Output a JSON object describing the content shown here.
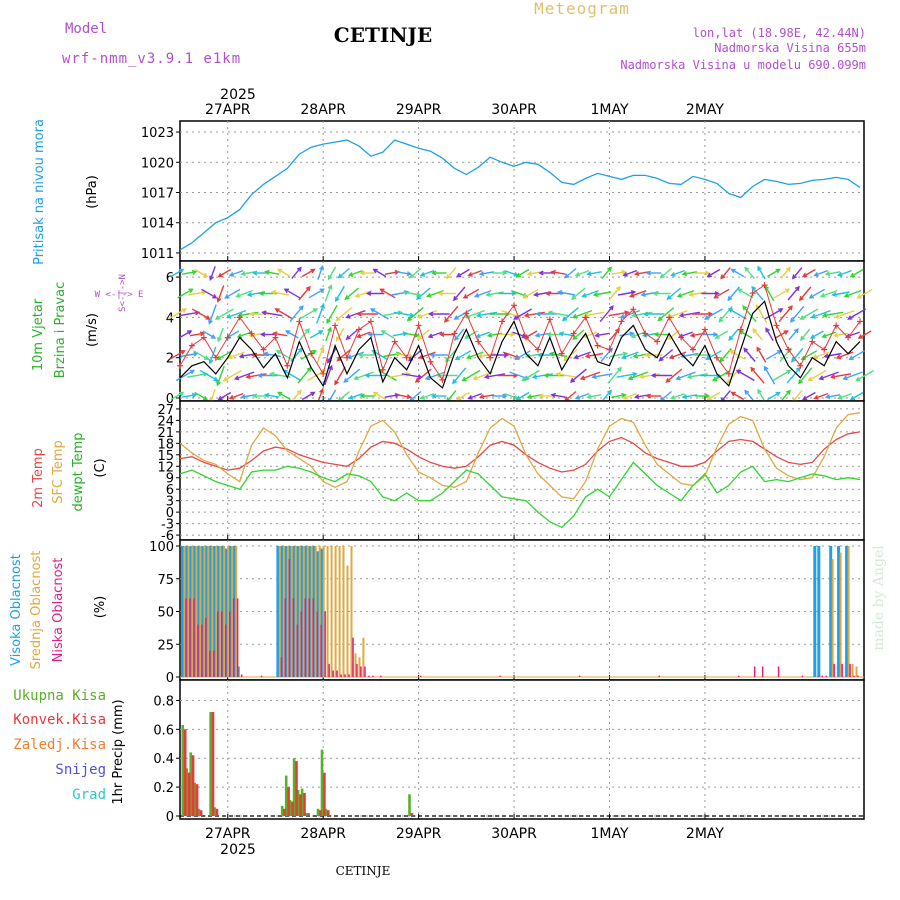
{
  "header": {
    "model_label": "Model",
    "model_name": "wrf-nmm_v3.9.1  e1km",
    "station": "CETINJE",
    "product": "Meteogram",
    "lonlat": "lon,lat (18.98E, 42.44N)",
    "elevation": "Nadmorska Visina 655m",
    "model_elevation": "Nadmorska Visina u modelu 690.099m",
    "footer_station": "CETINJE",
    "watermark": "made by Angel"
  },
  "time_axis": {
    "year": "2025",
    "day_labels": [
      "27APR",
      "28APR",
      "29APR",
      "30APR",
      "1MAY",
      "2MAY"
    ]
  },
  "colors": {
    "pressure": "#1ea0e8",
    "wind_speed": "#000000",
    "wind_gust": "#e83a3a",
    "temp2m": "#e84848",
    "sfc_temp": "#e0a840",
    "dewpoint": "#2ed62e",
    "cloud_high": "#1ea0e8",
    "cloud_mid": "#e0a840",
    "cloud_low": "#e0208a",
    "precip_total": "#5ab02a",
    "precip_conv": "#e83a3a",
    "precip_frozen": "#f08030",
    "precip_snow": "#5050e0",
    "precip_graupel": "#30c8c8"
  },
  "chart_data": [
    {
      "id": "pressure",
      "type": "line",
      "ylabel_text": "Pritisak na nivou mora",
      "ylabel_unit": "(hPa)",
      "yticks": [
        "1011",
        "1014",
        "1017",
        "1020",
        "1023"
      ],
      "ylim": [
        1010.5,
        1023.5
      ],
      "x_hours": [
        0,
        3,
        6,
        9,
        12,
        15,
        18,
        21,
        24,
        27,
        30,
        33,
        36,
        39,
        42,
        45,
        48,
        51,
        54,
        57,
        60,
        63,
        66,
        69,
        72,
        75,
        78,
        81,
        84,
        87,
        90,
        93,
        96,
        99,
        102,
        105,
        108,
        111,
        114,
        117,
        120,
        123,
        126,
        129,
        132,
        135,
        138,
        141,
        144,
        147,
        150,
        153,
        156,
        159,
        162,
        165,
        168,
        171
      ],
      "series": [
        {
          "values": [
            1011.3,
            1012.0,
            1013.0,
            1014.0,
            1014.5,
            1015.3,
            1016.8,
            1017.8,
            1018.6,
            1019.4,
            1020.8,
            1021.5,
            1021.8,
            1022.0,
            1022.2,
            1021.6,
            1020.6,
            1021.0,
            1022.2,
            1021.8,
            1021.4,
            1021.1,
            1020.4,
            1019.4,
            1018.8,
            1019.5,
            1020.5,
            1020.0,
            1019.6,
            1020.0,
            1019.8,
            1019.0,
            1018.0,
            1017.8,
            1018.4,
            1018.9,
            1018.6,
            1018.3,
            1018.7,
            1018.7,
            1018.4,
            1017.9,
            1017.8,
            1018.6,
            1018.3,
            1017.9,
            1016.9,
            1016.5,
            1017.6,
            1018.3,
            1018.1,
            1017.8,
            1017.9,
            1018.2,
            1018.3,
            1018.5,
            1018.3,
            1017.5
          ]
        }
      ]
    },
    {
      "id": "wind",
      "type": "line",
      "ylabel_text": "10m Vjetar Brzina i Pravac",
      "ylabel_line1": "10m Vjetar",
      "ylabel_line2": "Brzina i Pravac",
      "ylabel_unit": "(m/s)",
      "compass": "W <-|-> E",
      "compass_v": "S<-|->N",
      "yticks": [
        "0",
        "2",
        "4",
        "6"
      ],
      "ylim": [
        0,
        6.5
      ],
      "x_hours": [
        0,
        3,
        6,
        9,
        12,
        15,
        18,
        21,
        24,
        27,
        30,
        33,
        36,
        39,
        42,
        45,
        48,
        51,
        54,
        57,
        60,
        63,
        66,
        69,
        72,
        75,
        78,
        81,
        84,
        87,
        90,
        93,
        96,
        99,
        102,
        105,
        108,
        111,
        114,
        117,
        120,
        123,
        126,
        129,
        132,
        135,
        138,
        141,
        144,
        147,
        150,
        153,
        156,
        159,
        162,
        165,
        168,
        171
      ],
      "series": [
        {
          "values": [
            1.0,
            1.6,
            1.8,
            1.2,
            2.0,
            3.0,
            2.4,
            1.5,
            2.2,
            1.0,
            2.8,
            1.5,
            0.6,
            2.6,
            1.2,
            2.4,
            3.0,
            0.8,
            2.0,
            1.4,
            2.6,
            1.0,
            0.5,
            2.2,
            3.4,
            2.0,
            1.2,
            2.8,
            3.8,
            2.2,
            1.6,
            3.0,
            1.4,
            2.4,
            3.2,
            1.8,
            1.6,
            3.0,
            3.6,
            2.4,
            2.0,
            3.2,
            2.2,
            1.6,
            2.6,
            1.2,
            0.6,
            2.4,
            4.2,
            4.8,
            2.8,
            1.6,
            1.0,
            2.0,
            1.6,
            2.8,
            2.2,
            2.8
          ]
        },
        {
          "values": [
            1.6,
            2.6,
            3.0,
            2.0,
            3.0,
            4.0,
            3.2,
            2.4,
            3.0,
            1.6,
            3.8,
            2.2,
            1.2,
            3.6,
            2.0,
            3.4,
            3.8,
            1.4,
            2.8,
            2.0,
            3.6,
            1.8,
            0.9,
            3.2,
            4.2,
            2.8,
            2.0,
            3.8,
            4.6,
            3.0,
            2.4,
            3.9,
            2.2,
            3.2,
            4.0,
            2.6,
            2.4,
            3.8,
            4.4,
            3.2,
            2.8,
            4.0,
            3.0,
            2.4,
            3.4,
            2.0,
            1.2,
            3.4,
            5.2,
            5.6,
            3.6,
            2.4,
            1.6,
            2.8,
            2.4,
            3.6,
            3.0,
            3.8
          ]
        }
      ],
      "direction_deg": [
        60,
        80,
        120,
        200,
        240,
        250,
        260,
        270,
        280,
        300,
        40,
        60,
        20,
        210,
        230,
        250,
        270,
        300,
        80,
        100,
        230,
        250,
        270,
        220,
        240,
        250,
        260,
        90,
        110,
        240,
        260,
        270,
        280,
        230,
        250,
        260,
        40,
        80,
        250,
        260,
        270,
        230,
        250,
        260,
        90,
        240,
        220,
        300,
        320,
        330,
        60,
        40,
        220,
        240,
        250,
        260,
        250,
        240
      ]
    },
    {
      "id": "temperature",
      "type": "line",
      "ylabel_line1": "2m Temp",
      "ylabel_line2": "SFC Temp",
      "ylabel_line3": "dewpt Temp",
      "ylabel_unit": "(C)",
      "yticks": [
        "-6",
        "-3",
        "0",
        "3",
        "6",
        "9",
        "12",
        "15",
        "18",
        "21",
        "24",
        "27"
      ],
      "ylim": [
        -6.5,
        27.5
      ],
      "x_hours": [
        0,
        3,
        6,
        9,
        12,
        15,
        18,
        21,
        24,
        27,
        30,
        33,
        36,
        39,
        42,
        45,
        48,
        51,
        54,
        57,
        60,
        63,
        66,
        69,
        72,
        75,
        78,
        81,
        84,
        87,
        90,
        93,
        96,
        99,
        102,
        105,
        108,
        111,
        114,
        117,
        120,
        123,
        126,
        129,
        132,
        135,
        138,
        141,
        144,
        147,
        150,
        153,
        156,
        159,
        162,
        165,
        168,
        171
      ],
      "series": [
        {
          "values": [
            14.0,
            14.5,
            13.0,
            12.0,
            11.0,
            11.5,
            13.5,
            16.0,
            17.0,
            16.5,
            15.0,
            14.0,
            13.0,
            12.5,
            12.0,
            14.0,
            17.0,
            18.5,
            18.0,
            16.5,
            14.5,
            13.0,
            12.0,
            11.5,
            12.0,
            14.5,
            17.5,
            18.5,
            17.5,
            15.0,
            13.0,
            11.5,
            10.5,
            11.0,
            12.5,
            16.0,
            18.5,
            19.5,
            18.0,
            15.5,
            14.0,
            13.0,
            12.0,
            12.0,
            13.0,
            16.0,
            18.5,
            19.0,
            18.5,
            16.5,
            14.5,
            13.0,
            12.5,
            13.0,
            16.5,
            19.0,
            20.5,
            21.0
          ]
        },
        {
          "values": [
            18.0,
            15.5,
            13.5,
            12.5,
            10.0,
            8.0,
            17.5,
            22.0,
            20.0,
            16.0,
            14.0,
            12.0,
            8.0,
            6.5,
            8.0,
            16.0,
            22.5,
            24.0,
            21.0,
            15.0,
            10.5,
            9.0,
            7.0,
            6.5,
            8.0,
            15.5,
            22.0,
            24.5,
            22.5,
            15.0,
            10.0,
            7.0,
            4.0,
            3.5,
            8.0,
            16.5,
            22.5,
            24.5,
            23.5,
            17.5,
            12.5,
            10.0,
            7.5,
            7.0,
            9.5,
            17.0,
            23.0,
            25.0,
            24.0,
            16.5,
            11.5,
            9.5,
            8.5,
            9.0,
            14.5,
            22.0,
            25.5,
            26.0
          ]
        },
        {
          "values": [
            10.0,
            11.0,
            9.5,
            8.0,
            7.0,
            6.0,
            10.5,
            11.0,
            11.0,
            12.0,
            11.5,
            10.5,
            9.0,
            8.0,
            10.0,
            9.5,
            8.0,
            4.0,
            3.0,
            5.0,
            3.0,
            3.0,
            5.0,
            8.0,
            11.0,
            10.0,
            7.0,
            4.0,
            3.5,
            3.0,
            0.0,
            -2.5,
            -4.0,
            -1.0,
            4.0,
            6.0,
            4.0,
            8.5,
            13.0,
            10.0,
            7.0,
            5.0,
            3.0,
            7.0,
            10.0,
            5.0,
            7.0,
            10.5,
            12.0,
            8.0,
            8.5,
            8.0,
            9.0,
            10.0,
            9.5,
            8.5,
            9.0,
            8.5
          ]
        }
      ]
    },
    {
      "id": "clouds",
      "type": "bar",
      "ylabel_line1": "Visoka Oblacnost",
      "ylabel_line2": "Srednja Oblacnost",
      "ylabel_line3": "Niska Oblacnost",
      "ylabel_unit": "(%)",
      "yticks": [
        "0",
        "25",
        "50",
        "75",
        "100"
      ],
      "ylim": [
        0,
        100
      ],
      "x_hours": [
        1,
        2,
        3,
        4,
        5,
        6,
        7,
        8,
        9,
        10,
        11,
        12,
        13,
        14,
        15,
        20,
        25,
        26,
        27,
        28,
        29,
        30,
        31,
        32,
        33,
        34,
        35,
        36,
        37,
        38,
        39,
        40,
        41,
        42,
        43,
        44,
        45,
        46,
        47,
        48,
        50,
        60,
        80,
        100,
        120,
        140,
        144,
        146,
        150,
        156,
        160,
        161,
        162,
        164,
        166,
        168,
        169,
        170
      ],
      "series": [
        {
          "name": "high",
          "values": [
            100,
            100,
            100,
            100,
            100,
            100,
            100,
            100,
            100,
            100,
            100,
            98,
            100,
            100,
            8,
            0,
            100,
            100,
            100,
            100,
            100,
            100,
            100,
            100,
            100,
            100,
            96,
            98,
            0,
            0,
            0,
            0,
            0,
            0,
            0,
            0,
            0,
            0,
            0,
            0,
            0,
            0,
            0,
            0,
            0,
            0,
            0,
            0,
            0,
            0,
            100,
            100,
            0,
            100,
            100,
            100,
            0,
            0
          ]
        },
        {
          "name": "mid",
          "values": [
            100,
            100,
            100,
            100,
            100,
            100,
            100,
            100,
            100,
            100,
            100,
            100,
            100,
            100,
            0,
            0,
            100,
            100,
            100,
            100,
            100,
            100,
            100,
            100,
            100,
            100,
            100,
            100,
            100,
            100,
            100,
            100,
            100,
            85,
            100,
            18,
            15,
            30,
            0,
            0,
            0,
            0,
            0,
            0,
            0,
            0,
            0,
            0,
            0,
            0,
            0,
            0,
            0,
            90,
            95,
            100,
            10,
            8
          ]
        },
        {
          "name": "low",
          "values": [
            60,
            60,
            60,
            40,
            40,
            45,
            20,
            20,
            50,
            50,
            40,
            50,
            60,
            60,
            2,
            1,
            15,
            60,
            90,
            60,
            40,
            50,
            60,
            60,
            60,
            50,
            40,
            50,
            10,
            5,
            5,
            2,
            2,
            2,
            30,
            10,
            8,
            8,
            1,
            1,
            1,
            1,
            1,
            1,
            1,
            1,
            8,
            8,
            8,
            1,
            1,
            1,
            1,
            10,
            10,
            10,
            1,
            1
          ]
        }
      ]
    },
    {
      "id": "precip",
      "type": "bar",
      "legend": [
        "Ukupna  Kisa",
        "Konvek.Kisa",
        "Zaledj.Kisa",
        "Snijeg",
        "Grad"
      ],
      "ylabel_text": "1hr Precip (mm)",
      "yticks": [
        "0",
        "0.2",
        "0.4",
        "0.6",
        "0.8"
      ],
      "ylim": [
        0,
        0.9
      ],
      "x_hours": [
        1,
        2,
        3,
        4,
        5,
        6,
        8,
        9,
        10,
        11,
        26,
        27,
        28,
        29,
        30,
        31,
        32,
        35,
        36,
        37,
        58
      ],
      "series": [
        {
          "name": "total",
          "values": [
            0.63,
            0.33,
            0.44,
            0.23,
            0.05,
            0.0,
            0.72,
            0.06,
            0.0,
            0.0,
            0.07,
            0.28,
            0.11,
            0.4,
            0.18,
            0.19,
            0.02,
            0.05,
            0.46,
            0.05,
            0.15
          ]
        },
        {
          "name": "convective",
          "values": [
            0.6,
            0.3,
            0.42,
            0.22,
            0.04,
            0.0,
            0.72,
            0.05,
            0.0,
            0.0,
            0.05,
            0.2,
            0.1,
            0.38,
            0.15,
            0.16,
            0.02,
            0.04,
            0.3,
            0.04,
            0.02
          ]
        }
      ]
    }
  ]
}
